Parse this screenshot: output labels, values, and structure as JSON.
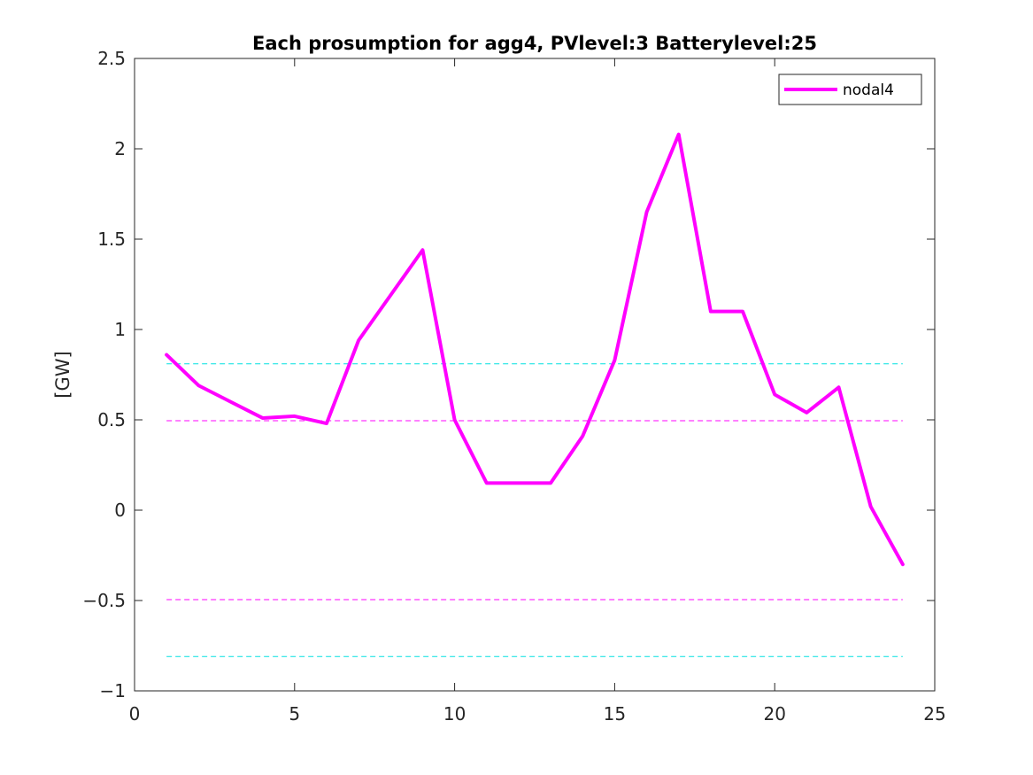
{
  "chart_data": {
    "type": "line",
    "title": "Each prosumption for agg4, PVlevel:3 Batterylevel:25",
    "xlabel": "",
    "ylabel": "[GW]",
    "xlim": [
      0,
      25
    ],
    "ylim": [
      -1,
      2.5
    ],
    "xticks": [
      0,
      5,
      10,
      15,
      20,
      25
    ],
    "yticks": [
      -1,
      -0.5,
      0,
      0.5,
      1,
      1.5,
      2,
      2.5
    ],
    "xtick_labels": [
      "0",
      "5",
      "10",
      "15",
      "20",
      "25"
    ],
    "ytick_labels": [
      "−1",
      "−0.5",
      "0",
      "0.5",
      "1",
      "1.5",
      "2",
      "2.5"
    ],
    "grid": false,
    "legend_position": "top-right",
    "series": [
      {
        "name": "nodal4",
        "color": "#ff00ff",
        "style": "solid",
        "x": [
          1,
          2,
          3,
          4,
          5,
          6,
          7,
          8,
          9,
          10,
          11,
          12,
          13,
          14,
          15,
          16,
          17,
          18,
          19,
          20,
          21,
          22,
          23,
          24
        ],
        "values": [
          0.86,
          0.69,
          0.6,
          0.51,
          0.52,
          0.48,
          0.94,
          1.19,
          1.44,
          0.5,
          0.15,
          0.15,
          0.15,
          0.41,
          0.83,
          1.65,
          2.08,
          1.1,
          1.1,
          0.64,
          0.54,
          0.68,
          0.02,
          -0.3
        ]
      }
    ],
    "reference_lines": [
      {
        "y": 0.81,
        "color": "#00e0e0",
        "style": "dashed",
        "x_range": [
          1,
          24
        ]
      },
      {
        "y": 0.495,
        "color": "#ff00ff",
        "style": "dashed",
        "x_range": [
          1,
          24
        ]
      },
      {
        "y": -0.495,
        "color": "#ff00ff",
        "style": "dashed",
        "x_range": [
          1,
          24
        ]
      },
      {
        "y": -0.81,
        "color": "#00e0e0",
        "style": "dashed",
        "x_range": [
          1,
          24
        ]
      }
    ]
  }
}
